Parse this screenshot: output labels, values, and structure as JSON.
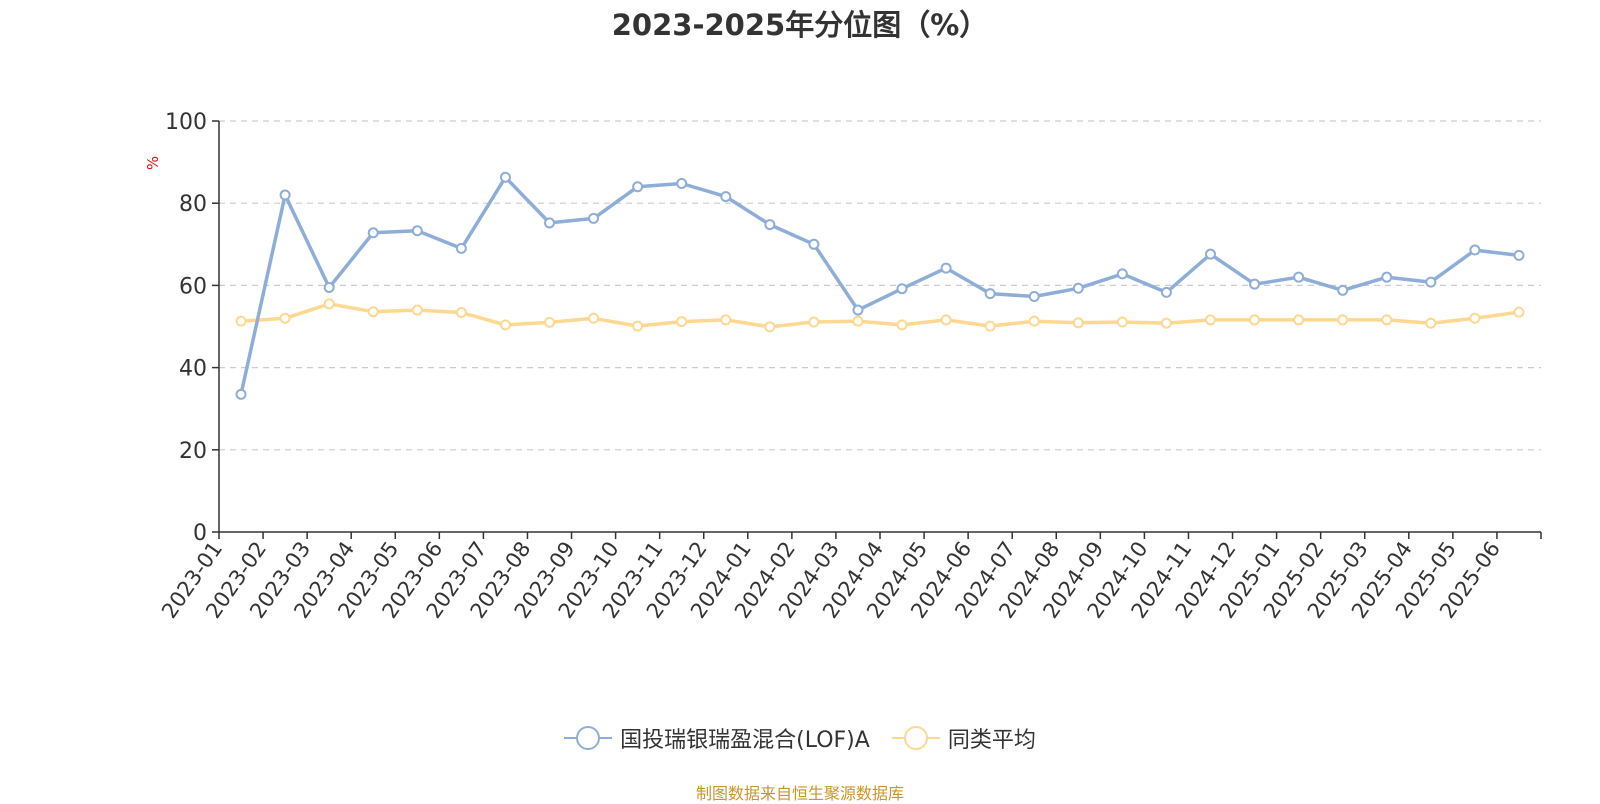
{
  "chart_data": {
    "type": "line",
    "title": "2023-2025年分位图（%）",
    "ylabel": "%",
    "xlabel": "",
    "ylim": [
      0,
      100
    ],
    "yticks": [
      0,
      20,
      40,
      60,
      80,
      100
    ],
    "grid": true,
    "legend_position": "bottom",
    "categories": [
      "2023-01",
      "2023-02",
      "2023-03",
      "2023-04",
      "2023-05",
      "2023-06",
      "2023-07",
      "2023-08",
      "2023-09",
      "2023-10",
      "2023-11",
      "2023-12",
      "2024-01",
      "2024-02",
      "2024-03",
      "2024-04",
      "2024-05",
      "2024-06",
      "2024-07",
      "2024-08",
      "2024-09",
      "2024-10",
      "2024-11",
      "2024-12",
      "2025-01",
      "2025-02",
      "2025-03",
      "2025-04",
      "2025-05",
      "2025-06"
    ],
    "series": [
      {
        "name": "国投瑞银瑞盈混合(LOF)A",
        "color": "#8eadd9",
        "values": [
          33.5,
          82,
          59.5,
          72.8,
          73.3,
          69,
          86.3,
          75.2,
          76.3,
          84,
          84.8,
          81.6,
          74.8,
          70,
          54,
          59.2,
          64.2,
          58,
          57.3,
          59.3,
          62.8,
          58.3,
          67.6,
          60.3,
          62,
          58.8,
          62,
          60.8,
          68.6,
          67.3
        ]
      },
      {
        "name": "同类平均",
        "color": "#fdd891",
        "values": [
          51.3,
          52,
          55.5,
          53.6,
          54,
          53.4,
          50.4,
          51,
          52,
          50.1,
          51.2,
          51.6,
          49.9,
          51.1,
          51.3,
          50.4,
          51.6,
          50.1,
          51.3,
          50.9,
          51.1,
          50.8,
          51.6,
          51.6,
          51.6,
          51.6,
          51.6,
          50.8,
          52,
          53.5
        ]
      }
    ]
  },
  "source_text": "制图数据来自恒生聚源数据库"
}
